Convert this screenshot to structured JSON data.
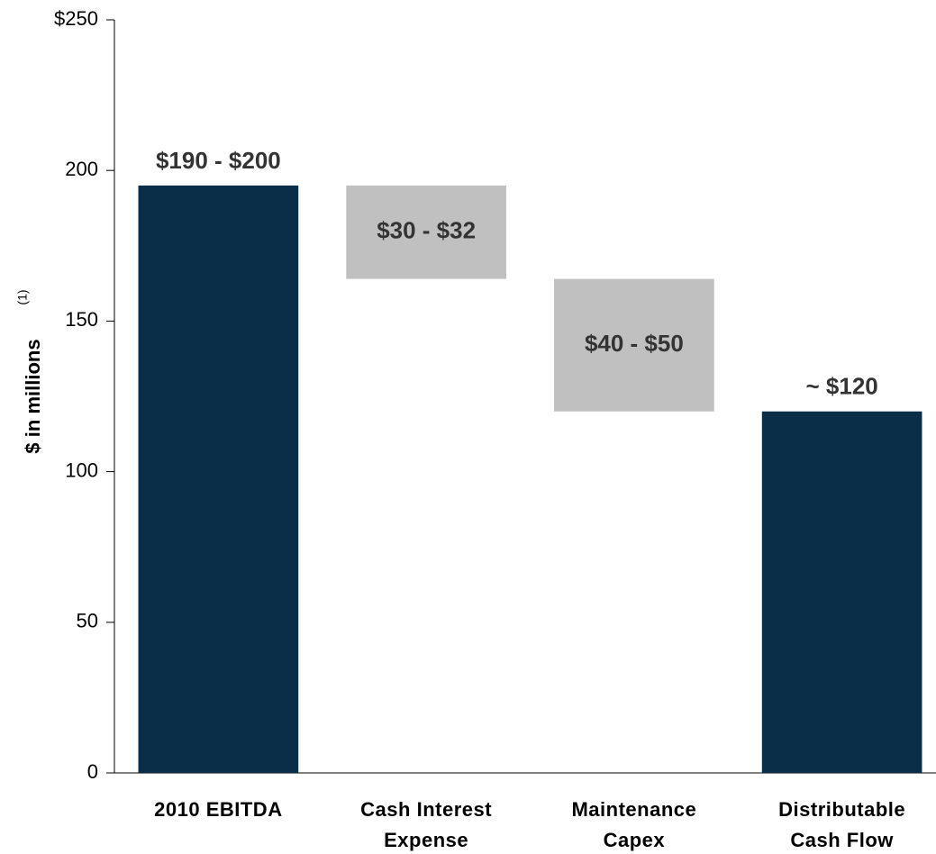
{
  "chart_data": {
    "type": "waterfall",
    "ylabel": "$ in millions",
    "ylabel_note": "(1)",
    "categories": [
      [
        "2010 EBITDA"
      ],
      [
        "Cash Interest",
        "Expense"
      ],
      [
        "Maintenance",
        "Capex"
      ],
      [
        "Distributable",
        "Cash Flow"
      ]
    ],
    "measure": [
      "absolute",
      "relative",
      "relative",
      "total"
    ],
    "values": [
      195,
      -31,
      -44,
      120
    ],
    "value_labels": [
      "$190 - $200",
      "$30 - $32",
      "$40 - $50",
      "~ $120"
    ],
    "total_color": "#0a2d48",
    "change_color": "#c0c0c0",
    "ylim": [
      0,
      250
    ],
    "yticks": [
      0,
      50,
      100,
      150,
      200,
      {
        "value": 250,
        "label": "$250"
      }
    ]
  }
}
